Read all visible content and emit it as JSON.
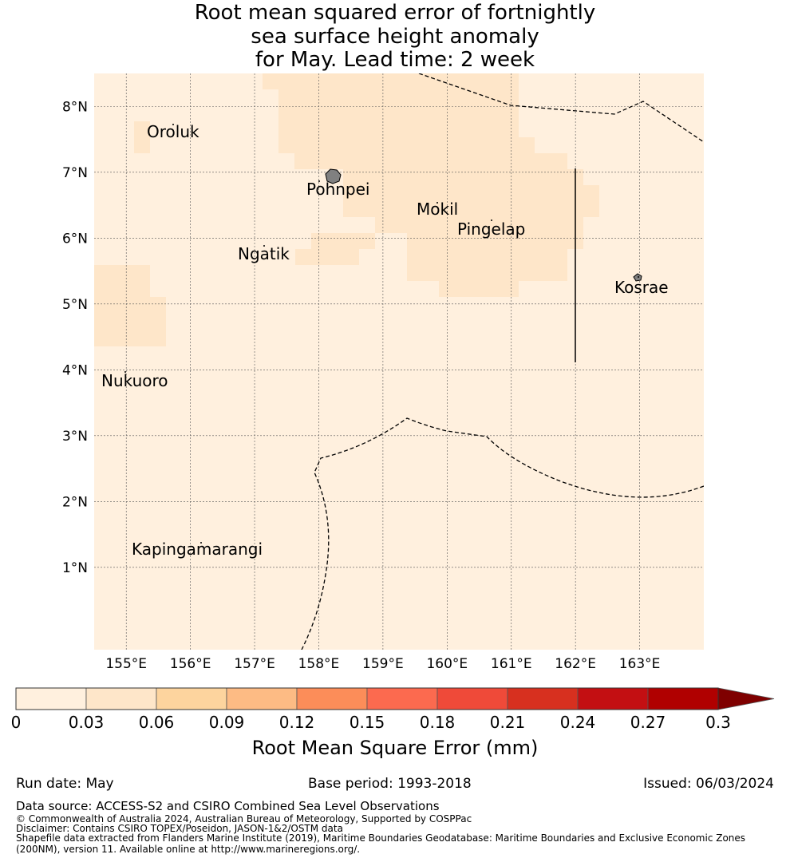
{
  "title": {
    "line1": "Root mean squared error of fortnightly",
    "line2": "sea surface height anomaly",
    "line3": "for May. Lead time: 2 week"
  },
  "map": {
    "lon_range": [
      154.5,
      164.0
    ],
    "lat_range": [
      -0.25,
      8.5
    ],
    "lon_ticks": [
      "155°E",
      "156°E",
      "157°E",
      "158°E",
      "159°E",
      "160°E",
      "161°E",
      "162°E",
      "163°E"
    ],
    "lat_ticks": [
      "1°N",
      "2°N",
      "3°N",
      "4°N",
      "5°N",
      "6°N",
      "7°N",
      "8°N"
    ],
    "grid": true,
    "background_color": "#fff0de",
    "light_cell_color": "#fee6c9",
    "places": [
      {
        "name": "Oroluk"
      },
      {
        "name": "Pohnpei"
      },
      {
        "name": "Mokil"
      },
      {
        "name": "Pingelap"
      },
      {
        "name": "Ngatik"
      },
      {
        "name": "Kosrae"
      },
      {
        "name": "Nukuoro"
      },
      {
        "name": "Kapingamarangi"
      }
    ]
  },
  "colorbar": {
    "ticks": [
      "0",
      "0.03",
      "0.06",
      "0.09",
      "0.12",
      "0.15",
      "0.18",
      "0.21",
      "0.24",
      "0.27",
      "0.3"
    ],
    "colors": [
      "#fff0de",
      "#fee6c9",
      "#fdd49e",
      "#fdbb84",
      "#fc8d59",
      "#fc6a4f",
      "#ef4a39",
      "#d7301f",
      "#c30f12",
      "#b00000"
    ],
    "extend_color": "#7f0000",
    "label": "Root Mean Square Error (mm)"
  },
  "footer": {
    "run_date": "Run date: May",
    "base_period": "Base period: 1993-2018",
    "issued": "Issued: 06/03/2024",
    "data_source": "Data source: ACCESS-S2 and CSIRO Combined Sea Level Observations",
    "copyright": "© Commonwealth of Australia 2024, Australian Bureau of Meteorology, Supported by COSPPac",
    "disclaimer": "Disclaimer: Contains CSIRO TOPEX/Poseidon, JASON-1&2/OSTM data",
    "shapefile1": "Shapefile data extracted from Flanders Marine Institute (2019), Maritime Boundaries Geodatabase: Maritime Boundaries and Exclusive Economic Zones",
    "shapefile2": "(200NM), version 11. Available online at http://www.marineregions.org/."
  }
}
